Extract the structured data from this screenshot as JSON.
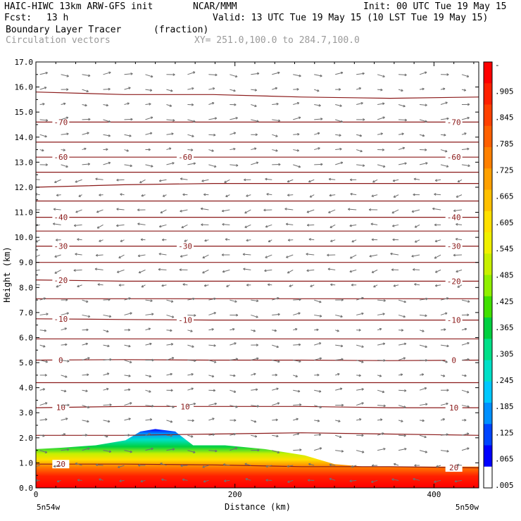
{
  "header": {
    "model": "HAIC-HIWC 13km ARW-GFS init",
    "org": "NCAR/MMM",
    "init": "Init: 00 UTC Tue 19 May 15",
    "fcst_label": "Fcst:",
    "fcst_value": "13 h",
    "valid": "Valid: 13 UTC Tue 19 May 15 (10 LST Tue 19 May 15)",
    "field_name": "Boundary Layer Tracer",
    "field_units": "(fraction)",
    "vector_name": "Circulation vectors",
    "xy_range": "XY= 251.0,100.0 to 284.7,100.0"
  },
  "colors": {
    "contour": "#8b1a1a",
    "vector": "#707070",
    "colorbar": [
      "#ffffff",
      "#0000ff",
      "#0044ff",
      "#0090ff",
      "#00c8ff",
      "#00e0c8",
      "#00e088",
      "#00d040",
      "#40e000",
      "#90f000",
      "#c8f000",
      "#f0f000",
      "#ffe000",
      "#ffc000",
      "#ffa000",
      "#ff8000",
      "#ff6000",
      "#ff4000",
      "#ff2000",
      "#ff0000"
    ]
  },
  "chart_data": {
    "type": "cross-section",
    "xlabel": "Distance (km)",
    "ylabel": "Height (km)",
    "xlim": [
      0,
      445
    ],
    "ylim": [
      0,
      17
    ],
    "x_ticks": [
      0,
      200,
      400
    ],
    "y_ticks": [
      "0.0",
      "1.0",
      "2.0",
      "3.0",
      "4.0",
      "5.0",
      "6.0",
      "7.0",
      "8.0",
      "9.0",
      "10.0",
      "11.0",
      "12.0",
      "13.0",
      "14.0",
      "15.0",
      "16.0",
      "17.0"
    ],
    "x_endpoint_labels": [
      "5n54w",
      "5n50w"
    ],
    "colorbar_labels": [
      "-",
      ".905",
      ".845",
      ".785",
      ".725",
      ".665",
      ".605",
      ".545",
      ".485",
      ".425",
      ".365",
      ".305",
      ".245",
      ".185",
      ".125",
      ".065",
      ".005"
    ],
    "temperature_contours": [
      {
        "label": "20",
        "heights": [
          0.95,
          0.95,
          0.92,
          0.85,
          0.85,
          0.8
        ]
      },
      {
        "label": "10",
        "heights": [
          3.2,
          3.25,
          3.25,
          3.25,
          3.2,
          3.2
        ]
      },
      {
        "label": "0",
        "heights": [
          5.1,
          5.12,
          5.1,
          5.1,
          5.08,
          5.1
        ]
      },
      {
        "label": "-10",
        "heights": [
          6.75,
          6.72,
          6.7,
          6.7,
          6.7,
          6.7
        ]
      },
      {
        "label": "-20",
        "heights": [
          8.3,
          8.25,
          8.25,
          8.25,
          8.25,
          8.25
        ]
      },
      {
        "label": "-30",
        "heights": [
          9.65,
          9.65,
          9.65,
          9.65,
          9.65,
          9.65
        ]
      },
      {
        "label": "-40",
        "heights": [
          10.8,
          10.8,
          10.8,
          10.8,
          10.8,
          10.8
        ]
      },
      {
        "label": "-60",
        "heights": [
          13.2,
          13.2,
          13.2,
          13.2,
          13.2,
          13.2
        ]
      },
      {
        "label": "-70",
        "heights": [
          14.6,
          14.6,
          14.6,
          14.6,
          14.6,
          14.6
        ]
      }
    ],
    "unlabeled_contours": [
      [
        2.1,
        2.1,
        2.15,
        2.2,
        2.15,
        2.1
      ],
      [
        4.2,
        4.2,
        4.2,
        4.2,
        4.2,
        4.2
      ],
      [
        5.95,
        5.95,
        5.95,
        5.95,
        5.95,
        5.95
      ],
      [
        7.55,
        7.55,
        7.55,
        7.55,
        7.55,
        7.55
      ],
      [
        9.0,
        9.0,
        9.0,
        9.0,
        9.0,
        9.0
      ],
      [
        10.25,
        10.25,
        10.25,
        10.25,
        10.25,
        10.25
      ],
      [
        11.45,
        11.45,
        11.45,
        11.45,
        11.45,
        11.45
      ],
      [
        12.0,
        12.1,
        12.15,
        12.15,
        12.15,
        12.15
      ],
      [
        12.6,
        12.6,
        12.6,
        12.6,
        12.6,
        12.6
      ],
      [
        13.8,
        13.8,
        13.8,
        13.8,
        13.8,
        13.8
      ],
      [
        15.8,
        15.7,
        15.7,
        15.6,
        15.55,
        15.6
      ]
    ],
    "contour_x_km": [
      0,
      89,
      178,
      267,
      356,
      445
    ],
    "tracer_top_km": [
      [
        0,
        1.55
      ],
      [
        25,
        1.6
      ],
      [
        60,
        1.7
      ],
      [
        90,
        1.9
      ],
      [
        105,
        2.25
      ],
      [
        120,
        2.35
      ],
      [
        140,
        2.25
      ],
      [
        158,
        1.7
      ],
      [
        190,
        1.7
      ],
      [
        230,
        1.55
      ],
      [
        270,
        1.3
      ],
      [
        300,
        0.95
      ],
      [
        330,
        0.85
      ],
      [
        400,
        0.85
      ],
      [
        445,
        0.85
      ]
    ]
  }
}
